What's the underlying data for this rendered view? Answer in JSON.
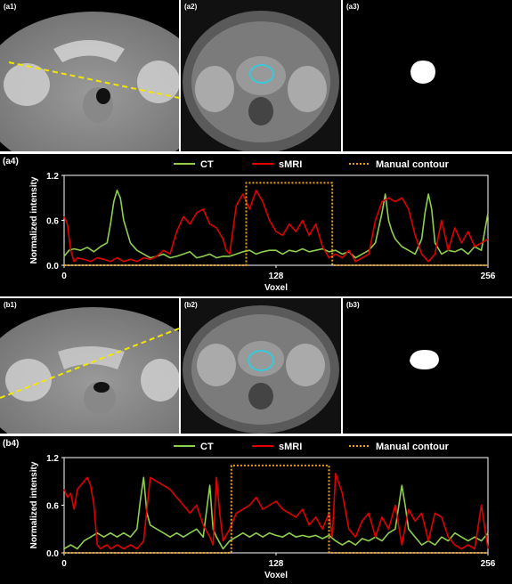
{
  "panels_a": {
    "ct_label": "(a1)",
    "mri_label": "(a2)",
    "mask_label": "(a3)"
  },
  "panels_b": {
    "ct_label": "(b1)",
    "mri_label": "(b2)",
    "mask_label": "(b3)"
  },
  "colors": {
    "ct": "#8fcf4f",
    "smri": "#e00000",
    "contour": "#f0a020",
    "profile_line": "#f2e600",
    "prostate_outline": "#39c8d8"
  },
  "chart_data": [
    {
      "type": "line",
      "panel_label": "(a4)",
      "title": "",
      "xlabel": "Voxel",
      "ylabel": "Normalized intensity",
      "xlim": [
        0,
        256
      ],
      "ylim": [
        0,
        1.2
      ],
      "xticks": [
        "0",
        "128",
        "256"
      ],
      "yticks": [
        "0.0",
        "0.6",
        "1.2"
      ],
      "legend": [
        "CT",
        "sMRI",
        "Manual contour"
      ],
      "legend_position": "top-center",
      "series": [
        {
          "name": "CT",
          "x": [
            0,
            3,
            6,
            10,
            14,
            18,
            22,
            26,
            28,
            30,
            32,
            34,
            36,
            38,
            40,
            44,
            48,
            52,
            56,
            60,
            64,
            68,
            72,
            76,
            80,
            84,
            88,
            92,
            96,
            100,
            104,
            108,
            112,
            116,
            120,
            124,
            128,
            132,
            136,
            140,
            144,
            148,
            152,
            156,
            160,
            164,
            168,
            172,
            176,
            180,
            184,
            188,
            192,
            194,
            196,
            198,
            200,
            204,
            208,
            212,
            216,
            218,
            220,
            222,
            224,
            228,
            232,
            236,
            240,
            244,
            248,
            252,
            256
          ],
          "y": [
            0.12,
            0.2,
            0.22,
            0.2,
            0.24,
            0.18,
            0.25,
            0.3,
            0.55,
            0.85,
            1.0,
            0.9,
            0.6,
            0.45,
            0.3,
            0.2,
            0.15,
            0.1,
            0.12,
            0.15,
            0.1,
            0.12,
            0.15,
            0.18,
            0.1,
            0.12,
            0.15,
            0.1,
            0.12,
            0.12,
            0.15,
            0.18,
            0.2,
            0.15,
            0.18,
            0.2,
            0.2,
            0.15,
            0.2,
            0.18,
            0.22,
            0.18,
            0.2,
            0.22,
            0.18,
            0.2,
            0.15,
            0.18,
            0.1,
            0.15,
            0.2,
            0.3,
            0.7,
            0.95,
            0.6,
            0.45,
            0.35,
            0.25,
            0.2,
            0.15,
            0.35,
            0.7,
            0.95,
            0.75,
            0.3,
            0.15,
            0.2,
            0.18,
            0.22,
            0.15,
            0.25,
            0.2,
            0.7
          ]
        },
        {
          "name": "sMRI",
          "x": [
            0,
            2,
            4,
            6,
            8,
            12,
            16,
            20,
            24,
            28,
            32,
            36,
            40,
            44,
            48,
            52,
            56,
            60,
            64,
            68,
            72,
            76,
            80,
            84,
            88,
            92,
            96,
            98,
            100,
            104,
            108,
            112,
            116,
            120,
            124,
            128,
            132,
            136,
            140,
            144,
            148,
            152,
            156,
            160,
            164,
            168,
            172,
            176,
            180,
            184,
            188,
            192,
            196,
            200,
            204,
            208,
            212,
            216,
            220,
            224,
            228,
            232,
            236,
            240,
            244,
            248,
            252,
            256
          ],
          "y": [
            0.65,
            0.55,
            0.2,
            0.05,
            0.1,
            0.08,
            0.05,
            0.1,
            0.08,
            0.05,
            0.1,
            0.05,
            0.08,
            0.05,
            0.1,
            0.08,
            0.12,
            0.2,
            0.15,
            0.45,
            0.65,
            0.55,
            0.7,
            0.75,
            0.55,
            0.5,
            0.35,
            0.2,
            0.15,
            0.8,
            0.95,
            0.75,
            1.0,
            0.85,
            0.6,
            0.45,
            0.4,
            0.55,
            0.45,
            0.6,
            0.4,
            0.55,
            0.25,
            0.1,
            0.15,
            0.1,
            0.2,
            0.05,
            0.1,
            0.15,
            0.6,
            0.85,
            0.9,
            0.85,
            0.9,
            0.75,
            0.4,
            0.15,
            0.05,
            0.15,
            0.6,
            0.2,
            0.5,
            0.3,
            0.45,
            0.25,
            0.3,
            0.35
          ]
        },
        {
          "name": "Manual contour",
          "x": [
            0,
            110,
            110,
            162,
            162,
            256
          ],
          "y": [
            0,
            0,
            1.1,
            1.1,
            0,
            0
          ]
        }
      ]
    },
    {
      "type": "line",
      "panel_label": "(b4)",
      "title": "",
      "xlabel": "Voxel",
      "ylabel": "Normalized intensity",
      "xlim": [
        0,
        256
      ],
      "ylim": [
        0,
        1.2
      ],
      "xticks": [
        "0",
        "128",
        "256"
      ],
      "yticks": [
        "0.0",
        "0.6",
        "1.2"
      ],
      "legend": [
        "CT",
        "sMRI",
        "Manual contour"
      ],
      "legend_position": "top-center",
      "series": [
        {
          "name": "CT",
          "x": [
            0,
            4,
            8,
            12,
            16,
            20,
            24,
            28,
            32,
            36,
            40,
            44,
            46,
            48,
            50,
            52,
            56,
            60,
            64,
            68,
            72,
            76,
            80,
            84,
            88,
            90,
            92,
            96,
            100,
            104,
            108,
            112,
            116,
            120,
            124,
            128,
            132,
            136,
            140,
            144,
            148,
            152,
            156,
            160,
            164,
            168,
            172,
            176,
            180,
            184,
            188,
            192,
            196,
            200,
            204,
            206,
            208,
            212,
            216,
            220,
            224,
            228,
            232,
            236,
            240,
            244,
            248,
            252,
            256
          ],
          "y": [
            0.05,
            0.1,
            0.05,
            0.15,
            0.2,
            0.25,
            0.2,
            0.25,
            0.2,
            0.25,
            0.2,
            0.3,
            0.65,
            0.95,
            0.5,
            0.35,
            0.3,
            0.25,
            0.2,
            0.25,
            0.2,
            0.25,
            0.3,
            0.2,
            0.85,
            0.3,
            0.2,
            0.05,
            0.15,
            0.2,
            0.25,
            0.2,
            0.25,
            0.2,
            0.25,
            0.22,
            0.2,
            0.25,
            0.2,
            0.22,
            0.2,
            0.22,
            0.18,
            0.22,
            0.15,
            0.1,
            0.15,
            0.1,
            0.18,
            0.15,
            0.2,
            0.15,
            0.25,
            0.3,
            0.85,
            0.6,
            0.3,
            0.2,
            0.1,
            0.15,
            0.1,
            0.2,
            0.15,
            0.25,
            0.2,
            0.15,
            0.2,
            0.15,
            0.25
          ]
        },
        {
          "name": "sMRI",
          "x": [
            0,
            2,
            4,
            6,
            8,
            10,
            12,
            14,
            16,
            18,
            20,
            22,
            24,
            26,
            28,
            32,
            36,
            40,
            44,
            48,
            52,
            56,
            60,
            64,
            68,
            72,
            76,
            80,
            84,
            88,
            90,
            92,
            94,
            96,
            100,
            104,
            108,
            112,
            116,
            120,
            124,
            128,
            132,
            136,
            140,
            144,
            148,
            152,
            156,
            160,
            162,
            164,
            168,
            172,
            176,
            180,
            184,
            188,
            192,
            196,
            200,
            204,
            208,
            212,
            216,
            220,
            224,
            228,
            232,
            236,
            240,
            244,
            248,
            252,
            256
          ],
          "y": [
            0.8,
            0.7,
            0.75,
            0.55,
            0.8,
            0.85,
            0.9,
            0.95,
            0.85,
            0.6,
            0.1,
            0.05,
            0.08,
            0.1,
            0.05,
            0.1,
            0.05,
            0.1,
            0.05,
            0.15,
            0.95,
            0.9,
            0.85,
            0.8,
            0.7,
            0.6,
            0.5,
            0.6,
            0.35,
            0.2,
            0.1,
            0.95,
            0.5,
            0.15,
            0.3,
            0.5,
            0.55,
            0.6,
            0.7,
            0.55,
            0.6,
            0.65,
            0.55,
            0.5,
            0.45,
            0.55,
            0.35,
            0.45,
            0.3,
            0.5,
            0.2,
            1.0,
            0.75,
            0.3,
            0.2,
            0.4,
            0.5,
            0.2,
            0.45,
            0.3,
            0.6,
            0.1,
            0.55,
            0.4,
            0.5,
            0.15,
            0.5,
            0.45,
            0.2,
            0.1,
            0.05,
            0.1,
            0.05,
            0.6,
            0.05
          ]
        },
        {
          "name": "Manual contour",
          "x": [
            0,
            101,
            101,
            160,
            160,
            256
          ],
          "y": [
            0,
            0,
            1.1,
            1.1,
            0,
            0
          ]
        }
      ]
    }
  ]
}
